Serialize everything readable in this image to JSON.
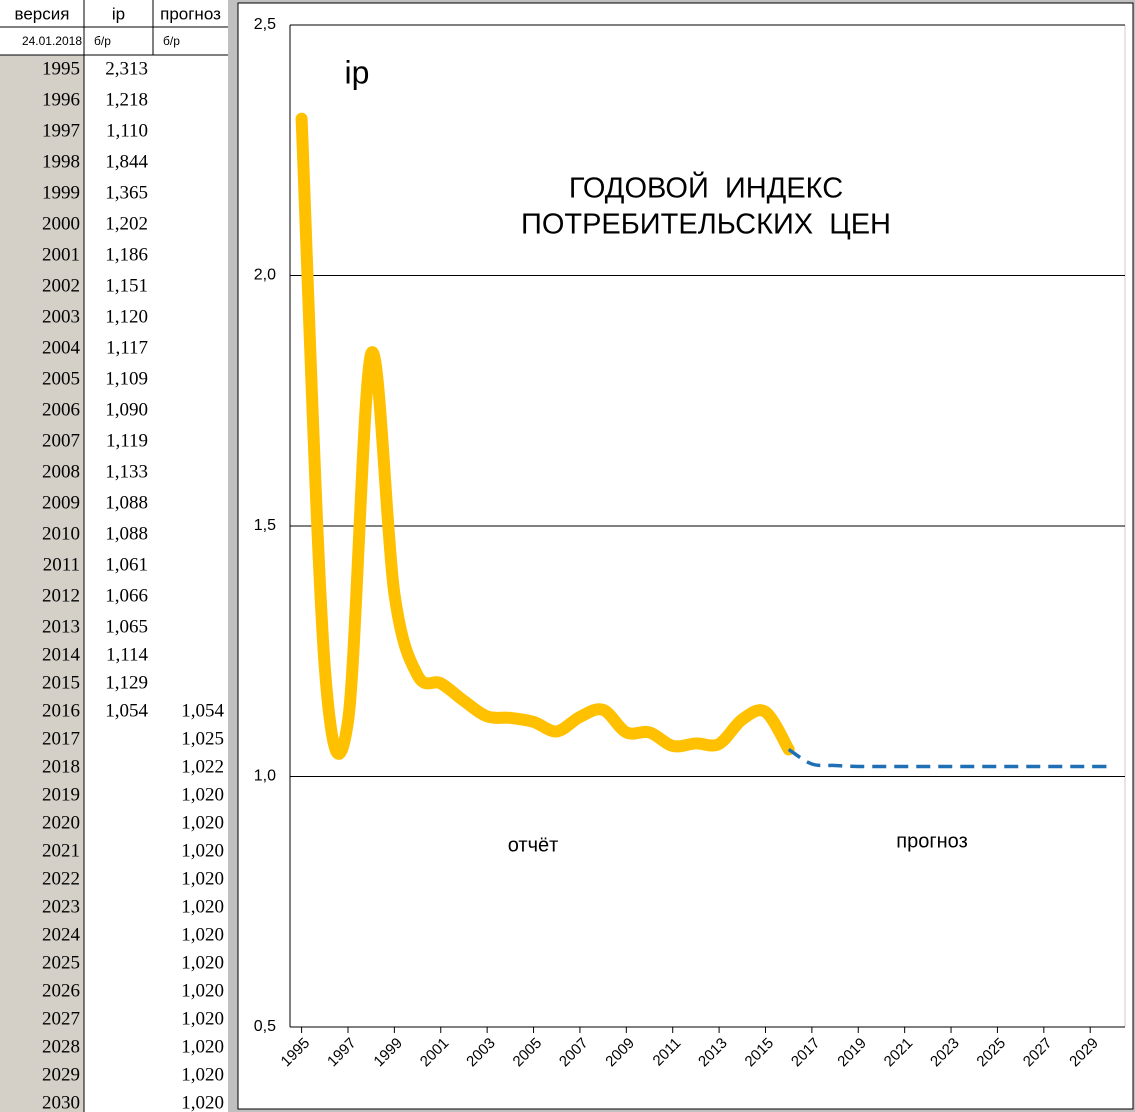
{
  "table": {
    "header": [
      "версия",
      "ip",
      "прогноз"
    ],
    "subheader": [
      "24.01.2018",
      "б/р",
      "б/р"
    ],
    "rows": [
      [
        "1995",
        "2,313",
        null
      ],
      [
        "1996",
        "1,218",
        null
      ],
      [
        "1997",
        "1,110",
        null
      ],
      [
        "1998",
        "1,844",
        null
      ],
      [
        "1999",
        "1,365",
        null
      ],
      [
        "2000",
        "1,202",
        null
      ],
      [
        "2001",
        "1,186",
        null
      ],
      [
        "2002",
        "1,151",
        null
      ],
      [
        "2003",
        "1,120",
        null
      ],
      [
        "2004",
        "1,117",
        null
      ],
      [
        "2005",
        "1,109",
        null
      ],
      [
        "2006",
        "1,090",
        null
      ],
      [
        "2007",
        "1,119",
        null
      ],
      [
        "2008",
        "1,133",
        null
      ],
      [
        "2009",
        "1,088",
        null
      ],
      [
        "2010",
        "1,088",
        null
      ],
      [
        "2011",
        "1,061",
        null
      ],
      [
        "2012",
        "1,066",
        null
      ],
      [
        "2013",
        "1,065",
        null
      ],
      [
        "2014",
        "1,114",
        null
      ],
      [
        "2015",
        "1,129",
        null
      ],
      [
        "2016",
        "1,054",
        "1,054"
      ],
      [
        "2017",
        null,
        "1,025"
      ],
      [
        "2018",
        null,
        "1,022"
      ],
      [
        "2019",
        null,
        "1,020"
      ],
      [
        "2020",
        null,
        "1,020"
      ],
      [
        "2021",
        null,
        "1,020"
      ],
      [
        "2022",
        null,
        "1,020"
      ],
      [
        "2023",
        null,
        "1,020"
      ],
      [
        "2024",
        null,
        "1,020"
      ],
      [
        "2025",
        null,
        "1,020"
      ],
      [
        "2026",
        null,
        "1,020"
      ],
      [
        "2027",
        null,
        "1,020"
      ],
      [
        "2028",
        null,
        "1,020"
      ],
      [
        "2029",
        null,
        "1,020"
      ],
      [
        "2030",
        null,
        "1,020"
      ]
    ]
  },
  "chart_data": {
    "type": "line",
    "title": [
      "ГОДОВОЙ  ИНДЕКС",
      "ПОТРЕБИТЕЛЬСКИХ  ЦЕН"
    ],
    "annotations": [
      "отчёт"
    ],
    "x": [
      1995,
      1996,
      1997,
      1998,
      1999,
      2000,
      2001,
      2002,
      2003,
      2004,
      2005,
      2006,
      2007,
      2008,
      2009,
      2010,
      2011,
      2012,
      2013,
      2014,
      2015,
      2016,
      2017,
      2018,
      2019,
      2020,
      2021,
      2022,
      2023,
      2024,
      2025,
      2026,
      2027,
      2028,
      2029,
      2030
    ],
    "xlim": [
      1994.5,
      2030.5
    ],
    "xticks": [
      1995,
      1997,
      1999,
      2001,
      2003,
      2005,
      2007,
      2009,
      2011,
      2013,
      2015,
      2017,
      2019,
      2021,
      2023,
      2025,
      2027,
      2029
    ],
    "ylim": [
      0.5,
      2.5
    ],
    "yticks": [
      {
        "value": 0.5,
        "label": "0,5"
      },
      {
        "value": 1.0,
        "label": "1,0"
      },
      {
        "value": 1.5,
        "label": "1,5"
      },
      {
        "value": 2.0,
        "label": "2,0"
      },
      {
        "value": 2.5,
        "label": "2,5"
      }
    ],
    "grid": true,
    "series": [
      {
        "name": "ip",
        "color": "#ffc000",
        "dashed": false,
        "values": [
          2.313,
          1.218,
          1.11,
          1.844,
          1.365,
          1.202,
          1.186,
          1.151,
          1.12,
          1.117,
          1.109,
          1.09,
          1.119,
          1.133,
          1.088,
          1.088,
          1.061,
          1.066,
          1.065,
          1.114,
          1.129,
          1.054,
          null,
          null,
          null,
          null,
          null,
          null,
          null,
          null,
          null,
          null,
          null,
          null,
          null,
          null
        ]
      },
      {
        "name": "прогноз",
        "color": "#1f6fb4",
        "dashed": true,
        "values": [
          null,
          null,
          null,
          null,
          null,
          null,
          null,
          null,
          null,
          null,
          null,
          null,
          null,
          null,
          null,
          null,
          null,
          null,
          null,
          null,
          null,
          1.054,
          1.025,
          1.022,
          1.02,
          1.02,
          1.02,
          1.02,
          1.02,
          1.02,
          1.02,
          1.02,
          1.02,
          1.02,
          1.02,
          1.02
        ]
      }
    ]
  }
}
